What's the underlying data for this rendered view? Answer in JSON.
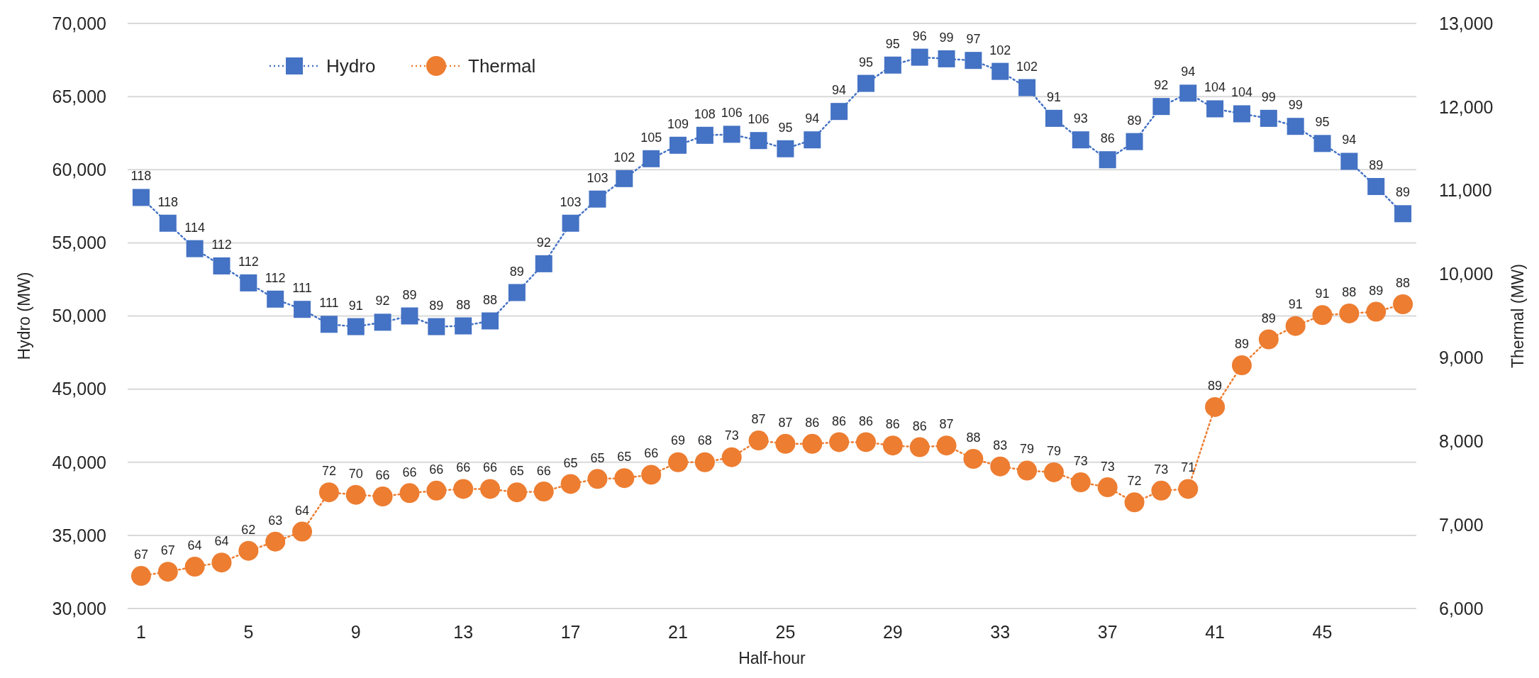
{
  "chart_data": {
    "type": "line",
    "xlabel": "Half-hour",
    "ylabel": "Hydro (MW)",
    "y2label": "Thermal (MW)",
    "x": [
      1,
      2,
      3,
      4,
      5,
      6,
      7,
      8,
      9,
      10,
      11,
      12,
      13,
      14,
      15,
      16,
      17,
      18,
      19,
      20,
      21,
      22,
      23,
      24,
      25,
      26,
      27,
      28,
      29,
      30,
      31,
      32,
      33,
      34,
      35,
      36,
      37,
      38,
      39,
      40,
      41,
      42,
      43,
      44,
      45,
      46,
      47,
      48
    ],
    "xlim": [
      0.5,
      48.5
    ],
    "xticks": [
      1,
      5,
      9,
      13,
      17,
      21,
      25,
      29,
      33,
      37,
      41,
      45
    ],
    "ylim": [
      30000,
      70000
    ],
    "yticks": [
      {
        "value": 30000,
        "label": "30,000"
      },
      {
        "value": 35000,
        "label": "35,000"
      },
      {
        "value": 40000,
        "label": "40,000"
      },
      {
        "value": 45000,
        "label": "45,000"
      },
      {
        "value": 50000,
        "label": "50,000"
      },
      {
        "value": 55000,
        "label": "55,000"
      },
      {
        "value": 60000,
        "label": "60,000"
      },
      {
        "value": 65000,
        "label": "65,000"
      },
      {
        "value": 70000,
        "label": "70,000"
      }
    ],
    "y2lim": [
      6000,
      13000
    ],
    "y2ticks": [
      {
        "value": 6000,
        "label": "6,000"
      },
      {
        "value": 7000,
        "label": "7,000"
      },
      {
        "value": 8000,
        "label": "8,000"
      },
      {
        "value": 9000,
        "label": "9,000"
      },
      {
        "value": 10000,
        "label": "10,000"
      },
      {
        "value": 11000,
        "label": "11,000"
      },
      {
        "value": 12000,
        "label": "12,000"
      },
      {
        "value": 13000,
        "label": "13,000"
      }
    ],
    "grid": "y",
    "legend": "top left",
    "line_style": "dotted",
    "series": [
      {
        "name": "Hydro",
        "color": "#4472c4",
        "marker": "square",
        "values": [
          58100,
          56340,
          54600,
          53420,
          52260,
          51150,
          50450,
          49430,
          49270,
          49570,
          50000,
          49270,
          49320,
          49660,
          51600,
          53570,
          56340,
          57990,
          59390,
          60750,
          61670,
          62350,
          62420,
          61990,
          61430,
          62040,
          63980,
          65900,
          67150,
          67690,
          67580,
          67470,
          66720,
          65610,
          63510,
          62040,
          60680,
          61920,
          64320,
          65230,
          64160,
          63820,
          63510,
          62960,
          61790,
          60570,
          58850,
          56990
        ]
      },
      {
        "name": "Thermal",
        "color": "#ed7d31",
        "marker": "circle",
        "axis": "y2",
        "values": [
          6390,
          6440,
          6500,
          6550,
          6690,
          6800,
          6920,
          7390,
          7360,
          7340,
          7380,
          7410,
          7430,
          7430,
          7390,
          7400,
          7490,
          7550,
          7560,
          7600,
          7750,
          7750,
          7810,
          8010,
          7970,
          7970,
          7990,
          7990,
          7950,
          7930,
          7950,
          7790,
          7700,
          7650,
          7630,
          7510,
          7450,
          7270,
          7410,
          7430,
          8410,
          8910,
          9220,
          9380,
          9510,
          9530,
          9550,
          9640
        ]
      }
    ],
    "annotations": [
      {
        "text": "118",
        "x": 1,
        "y": 58100
      },
      {
        "text": "118",
        "x": 2,
        "y": 56340
      },
      {
        "text": "114",
        "x": 3,
        "y": 54600
      },
      {
        "text": "112",
        "x": 4,
        "y": 53420
      },
      {
        "text": "112",
        "x": 5,
        "y": 52260
      },
      {
        "text": "112",
        "x": 6,
        "y": 51150
      },
      {
        "text": "111",
        "x": 7,
        "y": 50450
      },
      {
        "text": "111",
        "x": 8,
        "y": 49430
      },
      {
        "text": "91",
        "x": 9,
        "y": 49270
      },
      {
        "text": "92",
        "x": 10,
        "y": 49570
      },
      {
        "text": "89",
        "x": 11,
        "y": 50000
      },
      {
        "text": "89",
        "x": 12,
        "y": 49270
      },
      {
        "text": "88",
        "x": 13,
        "y": 49320
      },
      {
        "text": "88",
        "x": 14,
        "y": 49660
      },
      {
        "text": "89",
        "x": 15,
        "y": 51600
      },
      {
        "text": "92",
        "x": 16,
        "y": 53570
      },
      {
        "text": "103",
        "x": 17,
        "y": 56340
      },
      {
        "text": "103",
        "x": 18,
        "y": 57990
      },
      {
        "text": "102",
        "x": 19,
        "y": 59390
      },
      {
        "text": "105",
        "x": 20,
        "y": 60750
      },
      {
        "text": "109",
        "x": 21,
        "y": 61670
      },
      {
        "text": "108",
        "x": 22,
        "y": 62350
      },
      {
        "text": "106",
        "x": 23,
        "y": 62420
      },
      {
        "text": "106",
        "x": 24,
        "y": 61990
      },
      {
        "text": "95",
        "x": 25,
        "y": 61430
      },
      {
        "text": "94",
        "x": 26,
        "y": 62040
      },
      {
        "text": "94",
        "x": 27,
        "y": 63980
      },
      {
        "text": "95",
        "x": 28,
        "y": 65900
      },
      {
        "text": "95",
        "x": 29,
        "y": 67150
      },
      {
        "text": "96",
        "x": 30,
        "y": 67690
      },
      {
        "text": "99",
        "x": 31,
        "y": 67580
      },
      {
        "text": "97",
        "x": 32,
        "y": 67470
      },
      {
        "text": "102",
        "x": 33,
        "y": 66720
      },
      {
        "text": "102",
        "x": 34,
        "y": 65610
      },
      {
        "text": "91",
        "x": 35,
        "y": 63510
      },
      {
        "text": "93",
        "x": 36,
        "y": 62040
      },
      {
        "text": "86",
        "x": 37,
        "y": 60680
      },
      {
        "text": "89",
        "x": 38,
        "y": 61920
      },
      {
        "text": "92",
        "x": 39,
        "y": 64320
      },
      {
        "text": "94",
        "x": 40,
        "y": 65230
      },
      {
        "text": "104",
        "x": 41,
        "y": 64160
      },
      {
        "text": "104",
        "x": 42,
        "y": 63820
      },
      {
        "text": "99",
        "x": 43,
        "y": 63510
      },
      {
        "text": "99",
        "x": 44,
        "y": 62960
      },
      {
        "text": "95",
        "x": 45,
        "y": 61790
      },
      {
        "text": "94",
        "x": 46,
        "y": 60570
      },
      {
        "text": "89",
        "x": 47,
        "y": 58850
      },
      {
        "text": "89",
        "x": 48,
        "y": 56990
      },
      {
        "text": "67",
        "x": 1,
        "y": 32250
      },
      {
        "text": "67",
        "x": 2,
        "y": 32530
      },
      {
        "text": "64",
        "x": 3,
        "y": 32860
      },
      {
        "text": "64",
        "x": 4,
        "y": 33150
      },
      {
        "text": "62",
        "x": 5,
        "y": 33910
      },
      {
        "text": "63",
        "x": 6,
        "y": 34580
      },
      {
        "text": "64",
        "x": 7,
        "y": 35250
      },
      {
        "text": "72",
        "x": 8,
        "y": 37930
      },
      {
        "text": "70",
        "x": 9,
        "y": 37780
      },
      {
        "text": "66",
        "x": 10,
        "y": 37640
      },
      {
        "text": "66",
        "x": 11,
        "y": 37870
      },
      {
        "text": "66",
        "x": 12,
        "y": 38070
      },
      {
        "text": "66",
        "x": 13,
        "y": 38170
      },
      {
        "text": "66",
        "x": 14,
        "y": 38170
      },
      {
        "text": "65",
        "x": 15,
        "y": 37930
      },
      {
        "text": "66",
        "x": 16,
        "y": 37970
      },
      {
        "text": "65",
        "x": 17,
        "y": 38500
      },
      {
        "text": "65",
        "x": 18,
        "y": 38830
      },
      {
        "text": "65",
        "x": 19,
        "y": 38930
      },
      {
        "text": "66",
        "x": 20,
        "y": 39170
      },
      {
        "text": "69",
        "x": 21,
        "y": 40020
      },
      {
        "text": "68",
        "x": 22,
        "y": 40020
      },
      {
        "text": "73",
        "x": 23,
        "y": 40360
      },
      {
        "text": "87",
        "x": 24,
        "y": 41500
      },
      {
        "text": "87",
        "x": 25,
        "y": 41270
      },
      {
        "text": "86",
        "x": 26,
        "y": 41270
      },
      {
        "text": "86",
        "x": 27,
        "y": 41360
      },
      {
        "text": "86",
        "x": 28,
        "y": 41360
      },
      {
        "text": "86",
        "x": 29,
        "y": 41130
      },
      {
        "text": "86",
        "x": 30,
        "y": 41030
      },
      {
        "text": "87",
        "x": 31,
        "y": 41130
      },
      {
        "text": "88",
        "x": 32,
        "y": 40220
      },
      {
        "text": "83",
        "x": 33,
        "y": 39690
      },
      {
        "text": "79",
        "x": 34,
        "y": 39450
      },
      {
        "text": "79",
        "x": 35,
        "y": 39310
      },
      {
        "text": "73",
        "x": 36,
        "y": 38640
      },
      {
        "text": "73",
        "x": 37,
        "y": 38260
      },
      {
        "text": "72",
        "x": 38,
        "y": 37260
      },
      {
        "text": "73",
        "x": 39,
        "y": 38070
      },
      {
        "text": "71",
        "x": 40,
        "y": 38170
      },
      {
        "text": "89",
        "x": 41,
        "y": 43750
      },
      {
        "text": "89",
        "x": 42,
        "y": 46610
      },
      {
        "text": "89",
        "x": 43,
        "y": 48380
      },
      {
        "text": "91",
        "x": 44,
        "y": 49330
      },
      {
        "text": "91",
        "x": 45,
        "y": 50050
      },
      {
        "text": "88",
        "x": 46,
        "y": 50190
      },
      {
        "text": "89",
        "x": 47,
        "y": 50290
      },
      {
        "text": "88",
        "x": 48,
        "y": 50810
      }
    ]
  }
}
